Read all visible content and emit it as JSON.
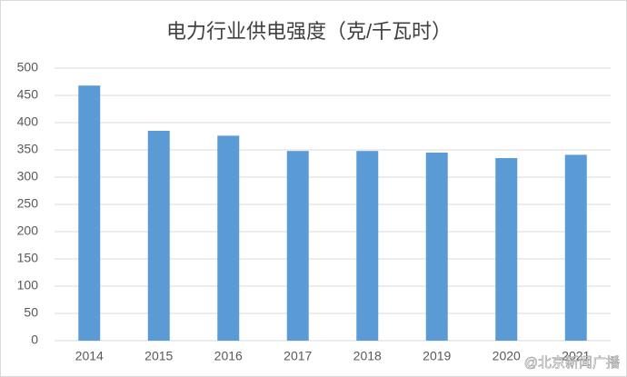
{
  "chart_data": {
    "type": "bar",
    "title": "电力行业供电强度（克/千瓦时）",
    "categories": [
      "2014",
      "2015",
      "2016",
      "2017",
      "2018",
      "2019",
      "2020",
      "2021"
    ],
    "values": [
      468,
      385,
      376,
      348,
      348,
      345,
      335,
      341
    ],
    "color": "#5b9bd5",
    "ylim": [
      0,
      500
    ],
    "yticks": [
      0,
      50,
      100,
      150,
      200,
      250,
      300,
      350,
      400,
      450,
      500
    ],
    "grid": true,
    "watermark": "@北京新闻广播"
  }
}
